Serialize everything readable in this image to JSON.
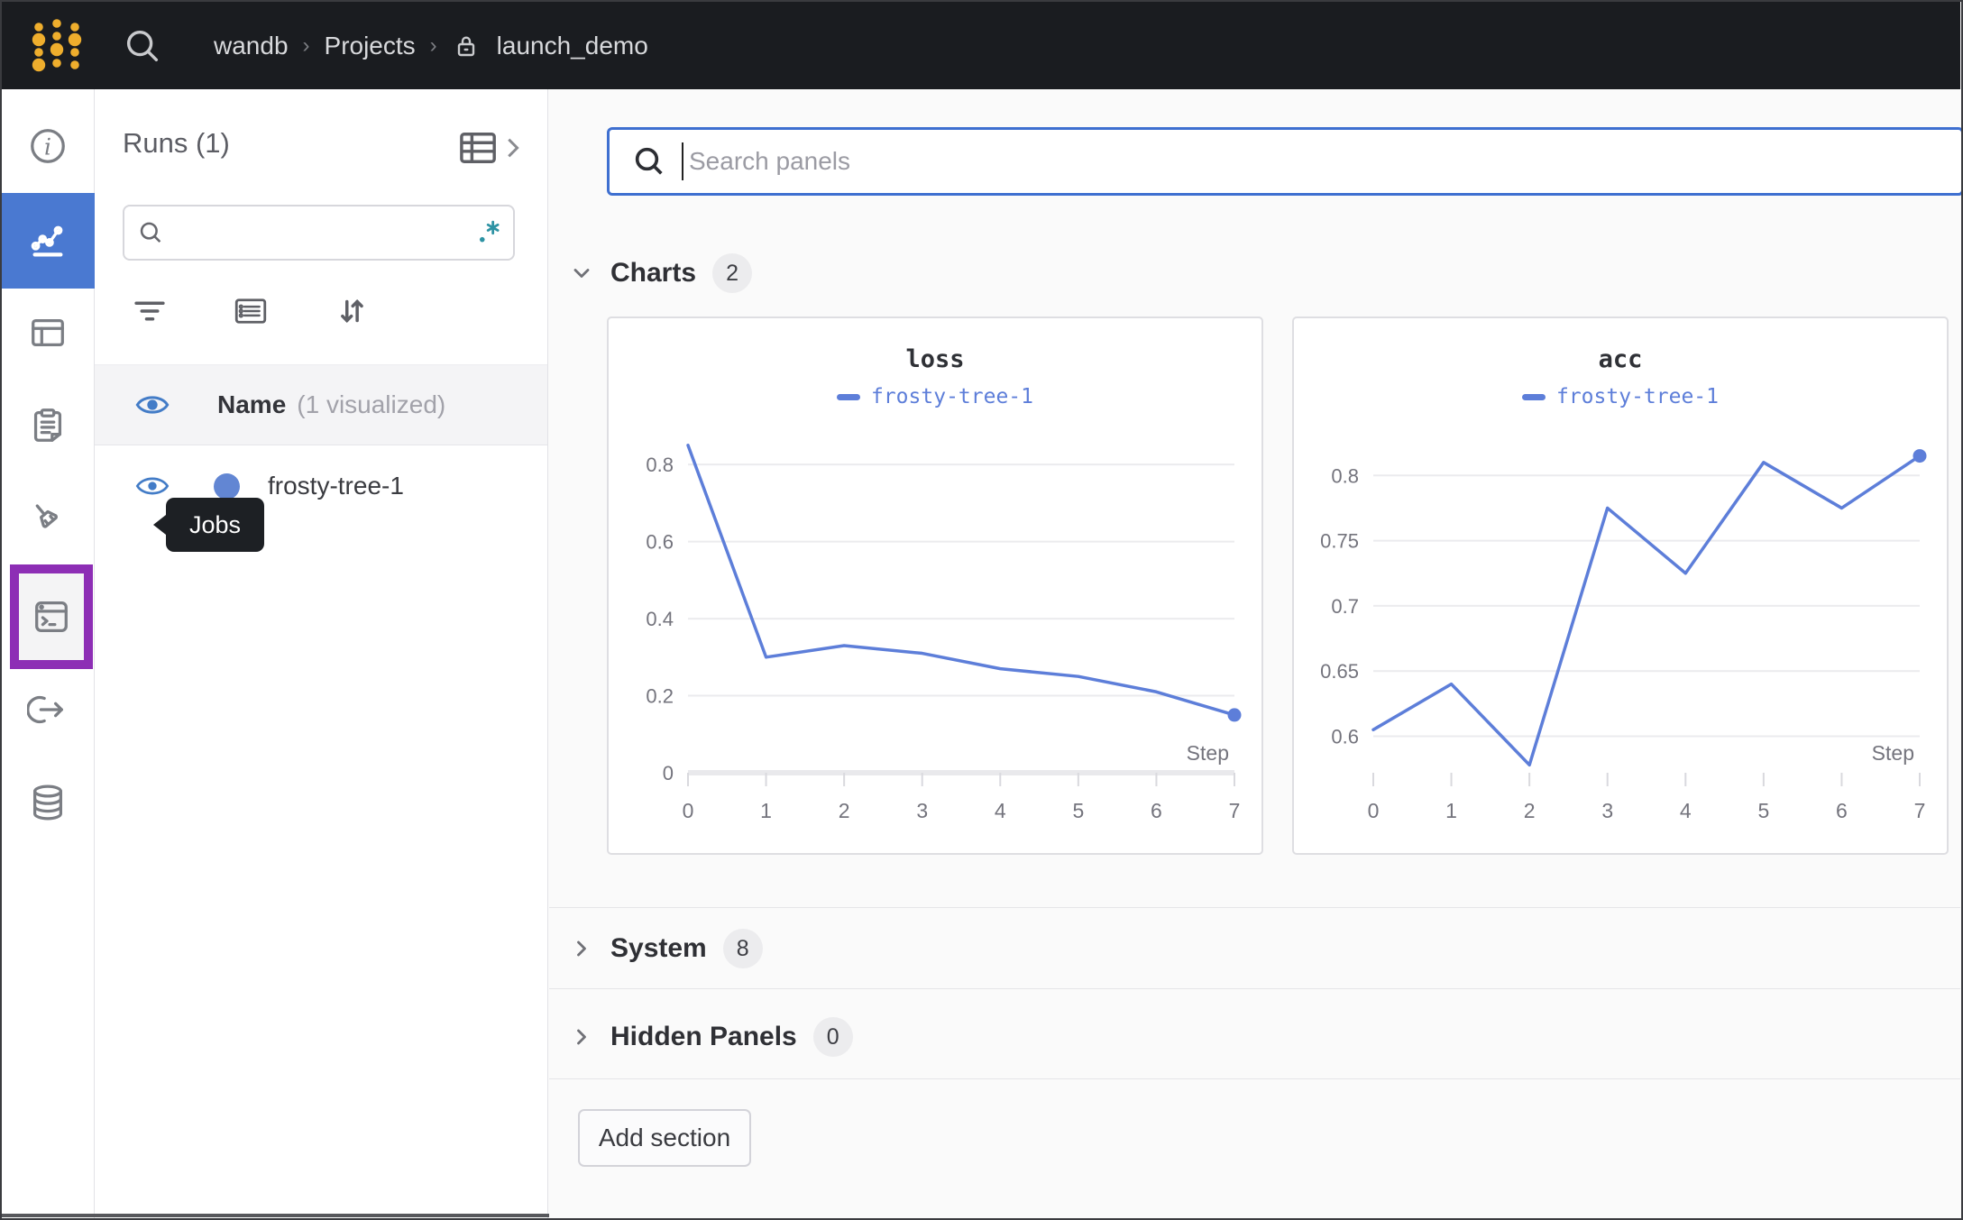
{
  "topbar": {
    "breadcrumb": [
      "wandb",
      "Projects",
      "launch_demo"
    ],
    "separator": "›"
  },
  "icons": {
    "logo": "wandb-dot-grid",
    "top_search": "magnifier",
    "breadcrumb_lock": "padlock",
    "sidebar": [
      "info-icon",
      "charts-icon",
      "panels-icon",
      "notes-icon",
      "sweeps-icon",
      "jobs-terminal-icon",
      "launch-icon",
      "artifacts-database-icon"
    ],
    "runs_controls": [
      "filter-icon",
      "list-icon",
      "sort-icon"
    ],
    "runs_header": "table-icon-with-chevron",
    "regex_toggle": ".*"
  },
  "sidebar_tooltip": {
    "label": "Jobs"
  },
  "runs_panel": {
    "title": "Runs (1)",
    "search_placeholder": "",
    "header_row": {
      "label": "Name",
      "annotation": "(1 visualized)"
    },
    "rows": [
      {
        "name": "frosty-tree-1",
        "color": "#6286d3"
      }
    ]
  },
  "main": {
    "search_placeholder": "Search panels",
    "sections": [
      {
        "label": "Charts",
        "count": "2"
      },
      {
        "label": "System",
        "count": "8"
      },
      {
        "label": "Hidden Panels",
        "count": "0"
      }
    ],
    "add_section_label": "Add section"
  },
  "colors": {
    "accent_blue": "#4a79d1",
    "focus_blue": "#3e6fd0",
    "purple_highlight": "#8d2eb5",
    "regex_teal": "#2e93a4",
    "logo_gold": "#efae2d",
    "chart_line": "#5d7ed9"
  },
  "chart_data": [
    {
      "type": "line",
      "title": "loss",
      "x": [
        0,
        1,
        2,
        3,
        4,
        5,
        6,
        7
      ],
      "series": [
        {
          "name": "frosty-tree-1",
          "values": [
            0.85,
            0.3,
            0.33,
            0.31,
            0.27,
            0.25,
            0.21,
            0.15
          ]
        }
      ],
      "xlabel": "Step",
      "ylim": [
        0,
        0.88
      ],
      "yticks": [
        0,
        0.2,
        0.4,
        0.6,
        0.8
      ],
      "grid": true,
      "legend_position": "top-center",
      "line_color": "#5d7ed9",
      "axis_bar": true,
      "end_marker": true
    },
    {
      "type": "line",
      "title": "acc",
      "x": [
        0,
        1,
        2,
        3,
        4,
        5,
        6,
        7
      ],
      "series": [
        {
          "name": "frosty-tree-1",
          "values": [
            0.605,
            0.64,
            0.578,
            0.775,
            0.725,
            0.81,
            0.775,
            0.815
          ]
        }
      ],
      "xlabel": "Step",
      "ylim": [
        0.572,
        0.832
      ],
      "yticks": [
        0.6,
        0.65,
        0.7,
        0.75,
        0.8
      ],
      "grid": true,
      "legend_position": "top-center",
      "line_color": "#5d7ed9",
      "axis_bar": false,
      "end_marker": true
    }
  ]
}
